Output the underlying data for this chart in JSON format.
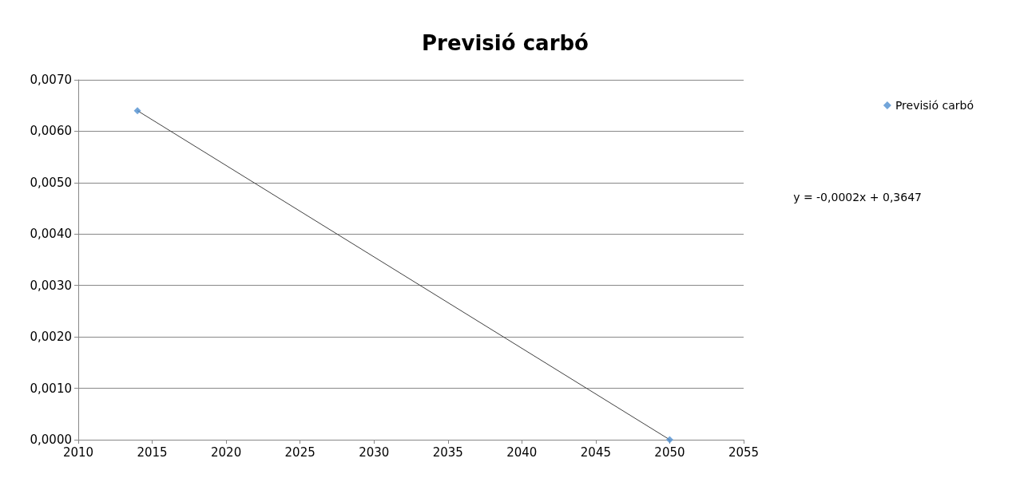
{
  "chart_data": {
    "type": "scatter",
    "title": "Previsió carbó",
    "x": [
      2014,
      2050
    ],
    "series": [
      {
        "name": "Previsió carbó",
        "type": "scatter",
        "color": "#4f8fd0",
        "values": [
          0.0064,
          0
        ]
      },
      {
        "type": "line",
        "color": "#404040",
        "values": [
          0.0064,
          0
        ],
        "marker": "none"
      }
    ],
    "xlim": [
      2010,
      2055
    ],
    "xticks": [
      2010,
      2015,
      2020,
      2025,
      2030,
      2035,
      2040,
      2045,
      2050,
      2055
    ],
    "ylim": [
      0,
      0.007
    ],
    "yticks": [
      {
        "value": 0,
        "label": "0,0000"
      },
      {
        "value": 0.001,
        "label": "0,0010"
      },
      {
        "value": 0.002,
        "label": "0,0020"
      },
      {
        "value": 0.003,
        "label": "0,0030"
      },
      {
        "value": 0.004,
        "label": "0,0040"
      },
      {
        "value": 0.005,
        "label": "0,0050"
      },
      {
        "value": 0.006,
        "label": "0,0060"
      },
      {
        "value": 0.007,
        "label": "0,0070"
      }
    ],
    "annotations": [
      "y = -0,0002x + 0,3647"
    ],
    "grid": "y",
    "legend": "top right",
    "marker": "diamond"
  }
}
